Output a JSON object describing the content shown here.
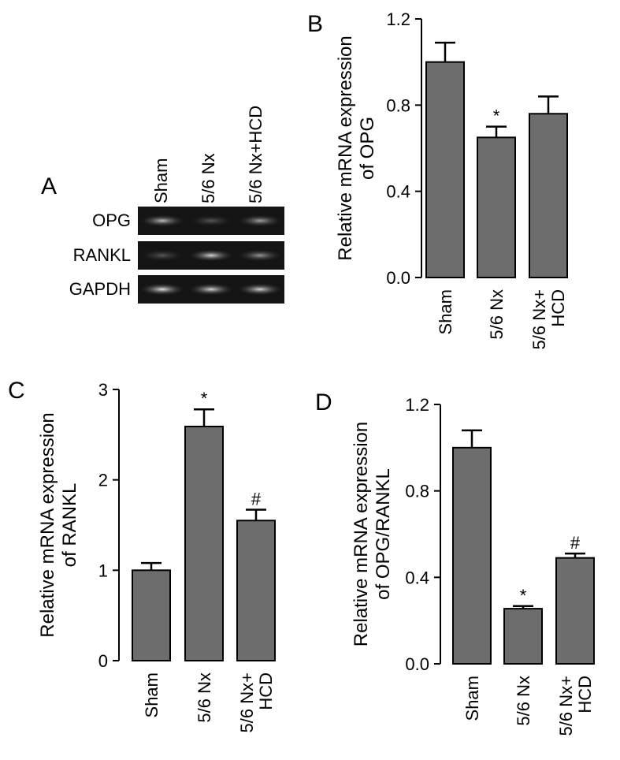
{
  "panel_a": {
    "letter": "A",
    "lanes": [
      "Sham",
      "5/6 Nx",
      "5/6 Nx+HCD"
    ],
    "rows": [
      "OPG",
      "RANKL",
      "GAPDH"
    ],
    "band_intensity": [
      [
        0.75,
        0.35,
        0.65
      ],
      [
        0.35,
        0.85,
        0.6
      ],
      [
        0.9,
        0.85,
        0.85
      ]
    ]
  },
  "chart_data": [
    {
      "panel": "B",
      "type": "bar",
      "categories": [
        [
          "Sham"
        ],
        [
          "5/6 Nx"
        ],
        [
          "5/6 Nx+",
          "HCD"
        ]
      ],
      "values": [
        1.0,
        0.65,
        0.76
      ],
      "errors": [
        0.09,
        0.05,
        0.08
      ],
      "significance": [
        "",
        "*",
        ""
      ],
      "ylabel": [
        "Relative mRNA expression",
        "of OPG"
      ],
      "ylim": [
        0,
        1.2
      ],
      "yticks": [
        "0.0",
        "0.4",
        "0.8",
        "1.2"
      ],
      "ytick_values": [
        0,
        0.4,
        0.8,
        1.2
      ],
      "bar_color": "#6d6d6d"
    },
    {
      "panel": "C",
      "type": "bar",
      "categories": [
        [
          "Sham"
        ],
        [
          "5/6 Nx"
        ],
        [
          "5/6 Nx+",
          "HCD"
        ]
      ],
      "values": [
        1.0,
        2.59,
        1.55
      ],
      "errors": [
        0.08,
        0.19,
        0.12
      ],
      "significance": [
        "",
        "*",
        "#"
      ],
      "ylabel": [
        "Relative mRNA expression",
        "of RANKL"
      ],
      "ylim": [
        0,
        3
      ],
      "yticks": [
        "0",
        "1",
        "2",
        "3"
      ],
      "ytick_values": [
        0,
        1,
        2,
        3
      ],
      "bar_color": "#6d6d6d"
    },
    {
      "panel": "D",
      "type": "bar",
      "categories": [
        [
          "Sham"
        ],
        [
          "5/6 Nx"
        ],
        [
          "5/6 Nx+",
          "HCD"
        ]
      ],
      "values": [
        1.0,
        0.255,
        0.49
      ],
      "errors": [
        0.08,
        0.012,
        0.02
      ],
      "significance": [
        "",
        "*",
        "#"
      ],
      "ylabel": [
        "Relative mRNA expression",
        "of OPG/RANKL"
      ],
      "ylim": [
        0,
        1.2
      ],
      "yticks": [
        "0.0",
        "0.4",
        "0.8",
        "1.2"
      ],
      "ytick_values": [
        0,
        0.4,
        0.8,
        1.2
      ],
      "bar_color": "#6d6d6d"
    }
  ]
}
